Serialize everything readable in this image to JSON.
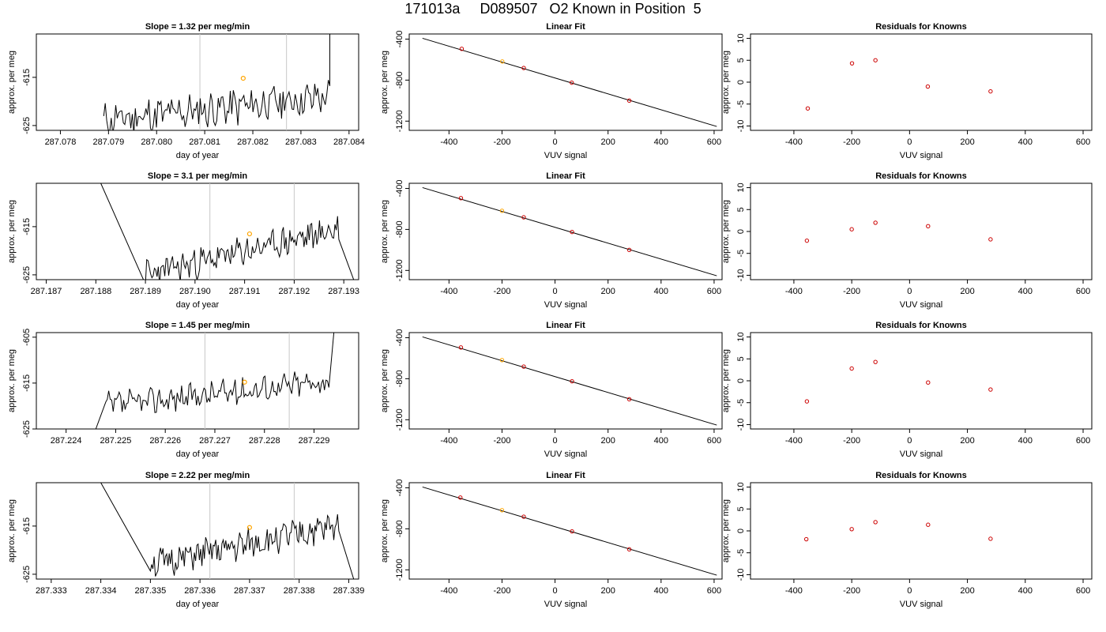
{
  "page_title": "171013a     D089507   O2 Known in Position  5",
  "colors": {
    "trace": "#000000",
    "vline": "#c8c8c8",
    "highlight": "#ffa500",
    "point": "#cc0000",
    "fitline": "#000000"
  },
  "chart_data": [
    {
      "type": "line",
      "title": "Slope =  1.32  per meg/min",
      "xlabel": "day of year",
      "ylabel": "approx. per meg",
      "xlim": [
        287.0775,
        287.0842
      ],
      "ylim": [
        -626,
        -606
      ],
      "xticks": [
        "287.078",
        "287.079",
        "287.080",
        "287.081",
        "287.082",
        "287.083",
        "287.084"
      ],
      "xtick_values": [
        287.078,
        287.079,
        287.08,
        287.081,
        287.082,
        287.083,
        287.084
      ],
      "yticks": [
        "-625",
        "-615"
      ],
      "ytick_values": [
        -625,
        -615
      ],
      "vlines": [
        287.0809,
        287.0827
      ],
      "highlight": {
        "x": 287.0818,
        "y": -615.2
      },
      "trace": {
        "x_start": 287.0789,
        "x_end": 287.0836,
        "y_start": -624,
        "y_end": -619,
        "wiggle": 3.2,
        "seed": 11,
        "spike_end": {
          "x": 287.0836,
          "y": -605
        }
      }
    },
    {
      "type": "scatter",
      "title": "Linear Fit",
      "xlabel": "VUV signal",
      "ylabel": "approx. per meg",
      "xlim": [
        -550,
        630
      ],
      "ylim": [
        -1290,
        -350
      ],
      "xticks": [
        "-400",
        "-200",
        "0",
        "200",
        "400",
        "600"
      ],
      "xtick_values": [
        -400,
        -200,
        0,
        200,
        400,
        600
      ],
      "yticks": [
        "-400",
        "-800",
        "-1200"
      ],
      "ytick_values": [
        -400,
        -800,
        -1200
      ],
      "points": [
        [
          -352,
          -495
        ],
        [
          -199,
          -618
        ],
        [
          -118,
          -682
        ],
        [
          63,
          -825
        ],
        [
          280,
          -1000
        ]
      ],
      "highlight_index": 1,
      "fit_line": [
        [
          -500,
          -392
        ],
        [
          610,
          -1252
        ]
      ]
    },
    {
      "type": "scatter",
      "title": "Residuals for Knowns",
      "xlabel": "VUV signal",
      "ylabel": "approx. per meg",
      "xlim": [
        -550,
        630
      ],
      "ylim": [
        -11,
        11
      ],
      "xticks": [
        "-400",
        "-200",
        "0",
        "200",
        "400",
        "600"
      ],
      "xtick_values": [
        -400,
        -200,
        0,
        200,
        400,
        600
      ],
      "yticks": [
        "-10",
        "-5",
        "0",
        "5",
        "10"
      ],
      "ytick_values": [
        -10,
        -5,
        0,
        5,
        10
      ],
      "points": [
        [
          -352,
          -6
        ],
        [
          -199,
          4.3
        ],
        [
          -118,
          5
        ],
        [
          63,
          -1
        ],
        [
          280,
          -2.1
        ]
      ]
    },
    {
      "type": "line",
      "title": "Slope =  3.1  per meg/min",
      "xlabel": "day of year",
      "ylabel": "approx. per meg",
      "xlim": [
        287.1868,
        287.1933
      ],
      "ylim": [
        -626,
        -606
      ],
      "xticks": [
        "287.187",
        "287.188",
        "287.189",
        "287.190",
        "287.191",
        "287.192",
        "287.193"
      ],
      "xtick_values": [
        287.187,
        287.188,
        287.189,
        287.19,
        287.191,
        287.192,
        287.193
      ],
      "yticks": [
        "-625",
        "-615"
      ],
      "ytick_values": [
        -625,
        -615
      ],
      "vlines": [
        287.1903,
        287.192
      ],
      "highlight": {
        "x": 287.1911,
        "y": -616.5
      },
      "trace": {
        "x_start": 287.189,
        "x_end": 287.1929,
        "y_start": -625,
        "y_end": -615.5,
        "wiggle": 2.6,
        "seed": 23,
        "spike_start": {
          "x": 287.1881,
          "y": -606
        },
        "drop_end": {
          "x": 287.1932,
          "y": -626
        }
      }
    },
    {
      "type": "scatter",
      "title": "Linear Fit",
      "xlabel": "VUV signal",
      "ylabel": "approx. per meg",
      "xlim": [
        -550,
        630
      ],
      "ylim": [
        -1290,
        -350
      ],
      "xticks": [
        "-400",
        "-200",
        "0",
        "200",
        "400",
        "600"
      ],
      "xtick_values": [
        -400,
        -200,
        0,
        200,
        400,
        600
      ],
      "yticks": [
        "-400",
        "-800",
        "-1200"
      ],
      "ytick_values": [
        -400,
        -800,
        -1200
      ],
      "points": [
        [
          -355,
          -495
        ],
        [
          -200,
          -618
        ],
        [
          -118,
          -682
        ],
        [
          64,
          -825
        ],
        [
          280,
          -1000
        ]
      ],
      "highlight_index": 1,
      "fit_line": [
        [
          -500,
          -392
        ],
        [
          610,
          -1252
        ]
      ]
    },
    {
      "type": "scatter",
      "title": "Residuals for Knowns",
      "xlabel": "VUV signal",
      "ylabel": "approx. per meg",
      "xlim": [
        -550,
        630
      ],
      "ylim": [
        -11,
        11
      ],
      "xticks": [
        "-400",
        "-200",
        "0",
        "200",
        "400",
        "600"
      ],
      "xtick_values": [
        -400,
        -200,
        0,
        200,
        400,
        600
      ],
      "yticks": [
        "-10",
        "-5",
        "0",
        "5",
        "10"
      ],
      "ytick_values": [
        -10,
        -5,
        0,
        5,
        10
      ],
      "points": [
        [
          -355,
          -2.1
        ],
        [
          -200,
          0.5
        ],
        [
          -118,
          2
        ],
        [
          64,
          1.2
        ],
        [
          280,
          -1.8
        ]
      ]
    },
    {
      "type": "line",
      "title": "Slope =  1.45  per meg/min",
      "xlabel": "day of year",
      "ylabel": "approx. per meg",
      "xlim": [
        287.2234,
        287.2299
      ],
      "ylim": [
        -625,
        -604
      ],
      "xticks": [
        "287.224",
        "287.225",
        "287.226",
        "287.227",
        "287.228",
        "287.229"
      ],
      "xtick_values": [
        287.224,
        287.225,
        287.226,
        287.227,
        287.228,
        287.229
      ],
      "yticks": [
        "-625",
        "-615",
        "-605"
      ],
      "ytick_values": [
        -625,
        -615,
        -605
      ],
      "vlines": [
        287.2268,
        287.2285
      ],
      "highlight": {
        "x": 287.2276,
        "y": -614.8
      },
      "trace": {
        "x_start": 287.2248,
        "x_end": 287.2293,
        "y_start": -620,
        "y_end": -614.5,
        "wiggle": 2.4,
        "seed": 37,
        "rise_start": {
          "x": 287.2246,
          "y": -625
        },
        "spike_end": {
          "x": 287.2294,
          "y": -604
        }
      }
    },
    {
      "type": "scatter",
      "title": "Linear Fit",
      "xlabel": "VUV signal",
      "ylabel": "approx. per meg",
      "xlim": [
        -550,
        630
      ],
      "ylim": [
        -1290,
        -350
      ],
      "xticks": [
        "-400",
        "-200",
        "0",
        "200",
        "400",
        "600"
      ],
      "xtick_values": [
        -400,
        -200,
        0,
        200,
        400,
        600
      ],
      "yticks": [
        "-400",
        "-800",
        "-1200"
      ],
      "ytick_values": [
        -400,
        -800,
        -1200
      ],
      "points": [
        [
          -355,
          -495
        ],
        [
          -200,
          -618
        ],
        [
          -118,
          -682
        ],
        [
          64,
          -825
        ],
        [
          280,
          -1000
        ]
      ],
      "highlight_index": 1,
      "fit_line": [
        [
          -500,
          -392
        ],
        [
          610,
          -1252
        ]
      ]
    },
    {
      "type": "scatter",
      "title": "Residuals for Knowns",
      "xlabel": "VUV signal",
      "ylabel": "approx. per meg",
      "xlim": [
        -550,
        630
      ],
      "ylim": [
        -11,
        11
      ],
      "xticks": [
        "-400",
        "-200",
        "0",
        "200",
        "400",
        "600"
      ],
      "xtick_values": [
        -400,
        -200,
        0,
        200,
        400,
        600
      ],
      "yticks": [
        "-10",
        "-5",
        "0",
        "5",
        "10"
      ],
      "ytick_values": [
        -10,
        -5,
        0,
        5,
        10
      ],
      "points": [
        [
          -355,
          -4.7
        ],
        [
          -200,
          2.8
        ],
        [
          -118,
          4.3
        ],
        [
          64,
          -0.4
        ],
        [
          280,
          -2
        ]
      ]
    },
    {
      "type": "line",
      "title": "Slope =  2.22  per meg/min",
      "xlabel": "day of year",
      "ylabel": "approx. per meg",
      "xlim": [
        287.3327,
        287.3392
      ],
      "ylim": [
        -626,
        -606
      ],
      "xticks": [
        "287.333",
        "287.334",
        "287.335",
        "287.336",
        "287.337",
        "287.338",
        "287.339"
      ],
      "xtick_values": [
        287.333,
        287.334,
        287.335,
        287.336,
        287.337,
        287.338,
        287.339
      ],
      "yticks": [
        "-625",
        "-615"
      ],
      "ytick_values": [
        -625,
        -615
      ],
      "vlines": [
        287.3362,
        287.3379
      ],
      "highlight": {
        "x": 287.337,
        "y": -615.3
      },
      "trace": {
        "x_start": 287.335,
        "x_end": 287.3388,
        "y_start": -623,
        "y_end": -615,
        "wiggle": 2.6,
        "seed": 51,
        "spike_start": {
          "x": 287.334,
          "y": -606
        },
        "drop_end": {
          "x": 287.3391,
          "y": -626
        }
      }
    },
    {
      "type": "scatter",
      "title": "Linear Fit",
      "xlabel": "VUV signal",
      "ylabel": "approx. per meg",
      "xlim": [
        -550,
        630
      ],
      "ylim": [
        -1290,
        -350
      ],
      "xticks": [
        "-400",
        "-200",
        "0",
        "200",
        "400",
        "600"
      ],
      "xtick_values": [
        -400,
        -200,
        0,
        200,
        400,
        600
      ],
      "yticks": [
        "-400",
        "-800",
        "-1200"
      ],
      "ytick_values": [
        -400,
        -800,
        -1200
      ],
      "points": [
        [
          -357,
          -495
        ],
        [
          -200,
          -618
        ],
        [
          -118,
          -682
        ],
        [
          64,
          -825
        ],
        [
          280,
          -1000
        ]
      ],
      "highlight_index": 1,
      "fit_line": [
        [
          -500,
          -392
        ],
        [
          610,
          -1252
        ]
      ]
    },
    {
      "type": "scatter",
      "title": "Residuals for Knowns",
      "xlabel": "VUV signal",
      "ylabel": "approx. per meg",
      "xlim": [
        -550,
        630
      ],
      "ylim": [
        -11,
        11
      ],
      "xticks": [
        "-400",
        "-200",
        "0",
        "200",
        "400",
        "600"
      ],
      "xtick_values": [
        -400,
        -200,
        0,
        200,
        400,
        600
      ],
      "yticks": [
        "-10",
        "-5",
        "0",
        "5",
        "10"
      ],
      "ytick_values": [
        -10,
        -5,
        0,
        5,
        10
      ],
      "points": [
        [
          -357,
          -1.9
        ],
        [
          -200,
          0.4
        ],
        [
          -118,
          2
        ],
        [
          64,
          1.4
        ],
        [
          280,
          -1.8
        ]
      ]
    }
  ]
}
